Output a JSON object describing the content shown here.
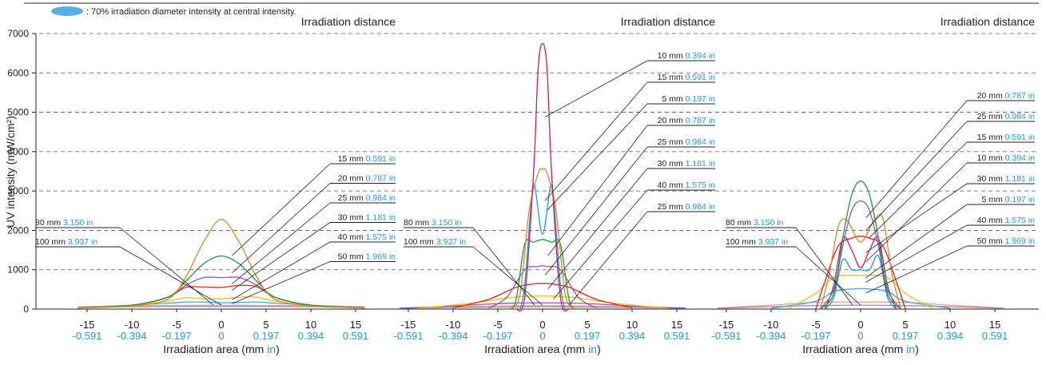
{
  "header": {
    "legend_note": ": 70% irradiation diameter intensity at central intensity."
  },
  "colors": {
    "text": "#222222",
    "inch": "#1a9be0",
    "grid": "#555555",
    "ellipse": "#5aaee6",
    "series": {
      "5 mm": "#1a9be0",
      "10 mm": "#d6176b",
      "15 mm": "#e8841d",
      "20 mm": "#1a9a3d",
      "25 mm": "#8e5aa8",
      "30 mm": "#e0242a",
      "40 mm": "#e9c21a",
      "50 mm": "#3aa6e0",
      "80 mm": "#e8a07a",
      "100 mm": "#9c86c0"
    }
  },
  "chart_data": [
    {
      "type": "line",
      "title": "Irradiation distance",
      "xlabel": "Irradiation area (mm ",
      "xlabel_unit": "in",
      "xlabel_close": ")",
      "ylabel": "UV intensity (mW/cm²)",
      "xlim": [
        -16,
        16
      ],
      "ylim": [
        0,
        7000
      ],
      "yticks": [
        "0",
        "1000",
        "2000",
        "3000",
        "4000",
        "5000",
        "6000",
        "7000"
      ],
      "xticks_mm": [
        "-15",
        "-10",
        "-5",
        "0",
        "5",
        "10",
        "15"
      ],
      "xticks_in": [
        "-0.591",
        "-0.394",
        "-0.197",
        "0",
        "0.197",
        "0.394",
        "0.591"
      ],
      "series": [
        {
          "name": "15 mm",
          "x": [
            -16,
            -10,
            -6,
            -4,
            -2,
            0,
            2,
            4,
            6,
            10,
            16
          ],
          "y": [
            30,
            80,
            250,
            800,
            1700,
            2280,
            1700,
            800,
            250,
            80,
            30
          ]
        },
        {
          "name": "20 mm",
          "x": [
            -16,
            -10,
            -6,
            -4,
            -2,
            0,
            2,
            4,
            6,
            10,
            16
          ],
          "y": [
            30,
            100,
            300,
            700,
            1150,
            1350,
            1150,
            700,
            300,
            100,
            30
          ]
        },
        {
          "name": "25 mm",
          "x": [
            -16,
            -10,
            -6,
            -4,
            -2,
            0,
            2,
            4,
            6,
            10,
            16
          ],
          "y": [
            30,
            100,
            300,
            600,
            800,
            800,
            800,
            600,
            300,
            100,
            30
          ]
        },
        {
          "name": "30 mm",
          "x": [
            -16,
            -10,
            -6,
            -4,
            -2,
            0,
            2,
            4,
            6,
            10,
            16
          ],
          "y": [
            30,
            100,
            300,
            550,
            560,
            550,
            600,
            560,
            300,
            100,
            30
          ]
        },
        {
          "name": "40 mm",
          "x": [
            -16,
            -10,
            -6,
            -4,
            -2,
            0,
            2,
            4,
            6,
            10,
            16
          ],
          "y": [
            30,
            100,
            200,
            290,
            260,
            260,
            300,
            300,
            200,
            100,
            30
          ]
        },
        {
          "name": "50 mm",
          "x": [
            -16,
            -10,
            -6,
            -4,
            -2,
            0,
            2,
            4,
            6,
            10,
            16
          ],
          "y": [
            40,
            100,
            150,
            180,
            180,
            160,
            170,
            180,
            150,
            100,
            40
          ]
        },
        {
          "name": "80 mm",
          "x": [
            -16,
            -10,
            -5,
            0,
            5,
            10,
            16
          ],
          "y": [
            60,
            80,
            90,
            100,
            90,
            80,
            60
          ]
        },
        {
          "name": "100 mm",
          "x": [
            -16,
            -10,
            -5,
            0,
            5,
            10,
            16
          ],
          "y": [
            50,
            60,
            70,
            70,
            70,
            60,
            50
          ]
        }
      ],
      "labels": [
        {
          "mm": "15 mm",
          "in": "0.591 in"
        },
        {
          "mm": "20 mm",
          "in": "0.787 in"
        },
        {
          "mm": "25 mm",
          "in": "0.984 in"
        },
        {
          "mm": "30 mm",
          "in": "1.181 in"
        },
        {
          "mm": "40 mm",
          "in": "1.575 in"
        },
        {
          "mm": "50 mm",
          "in": "1.969 in"
        }
      ],
      "left_labels": [
        {
          "mm": "80 mm",
          "in": "3.150 in"
        },
        {
          "mm": "100 mm",
          "in": "3.937 in"
        }
      ]
    },
    {
      "type": "line",
      "title": "Irradiation distance",
      "xlabel": "Irradiation area (mm ",
      "xlabel_unit": "in",
      "xlabel_close": ")",
      "xlim": [
        -16,
        16
      ],
      "ylim": [
        0,
        7000
      ],
      "xticks_mm": [
        "-15",
        "-10",
        "-5",
        "0",
        "5",
        "10",
        "15"
      ],
      "xticks_in": [
        "-0.591",
        "-0.394",
        "-0.197",
        "0",
        "0.197",
        "0.394",
        "0.591"
      ],
      "series": [
        {
          "name": "10 mm",
          "x": [
            -3,
            -2,
            -1,
            -0.5,
            0,
            0.5,
            1,
            2,
            3
          ],
          "y": [
            0,
            300,
            3500,
            6100,
            6750,
            6100,
            3500,
            300,
            0
          ]
        },
        {
          "name": "15 mm",
          "x": [
            -3.5,
            -2.5,
            -1.5,
            -0.5,
            0,
            0.5,
            1.5,
            2.5,
            3.5
          ],
          "y": [
            0,
            400,
            2500,
            3450,
            3550,
            3450,
            2500,
            400,
            0
          ]
        },
        {
          "name": "5 mm",
          "x": [
            -2.5,
            -2,
            -1.3,
            -0.9,
            0,
            0.9,
            1.3,
            2,
            2.5
          ],
          "y": [
            0,
            600,
            2600,
            3150,
            1900,
            3150,
            2600,
            600,
            0
          ]
        },
        {
          "name": "20 mm",
          "x": [
            -4,
            -3,
            -2,
            -1,
            0,
            1,
            2,
            3,
            4
          ],
          "y": [
            0,
            200,
            1650,
            1700,
            1770,
            1700,
            1650,
            200,
            0
          ]
        },
        {
          "name": "25 mm",
          "x": [
            -6,
            -4,
            -2,
            -0.5,
            0,
            0.5,
            2,
            4,
            6
          ],
          "y": [
            30,
            300,
            1000,
            1080,
            1100,
            1080,
            1000,
            300,
            30
          ]
        },
        {
          "name": "30 mm",
          "x": [
            -10,
            -6,
            -3,
            -1,
            0,
            1,
            3,
            6,
            10
          ],
          "y": [
            30,
            250,
            550,
            640,
            650,
            640,
            550,
            250,
            30
          ]
        },
        {
          "name": "40 mm",
          "x": [
            -14,
            -8,
            -4,
            -2,
            0,
            2,
            4,
            8,
            14
          ],
          "y": [
            20,
            150,
            280,
            320,
            330,
            320,
            280,
            150,
            20
          ]
        },
        {
          "name": "25 mm",
          "x": [
            -16,
            -10,
            -5,
            0,
            5,
            10,
            16
          ],
          "y": [
            20,
            80,
            140,
            160,
            140,
            80,
            20
          ]
        },
        {
          "name": "80 mm",
          "x": [
            -16,
            -10,
            -5,
            0,
            5,
            10,
            16
          ],
          "y": [
            30,
            60,
            80,
            90,
            80,
            60,
            30
          ]
        },
        {
          "name": "100 mm",
          "x": [
            -16,
            -10,
            -5,
            0,
            5,
            10,
            16
          ],
          "y": [
            20,
            40,
            50,
            60,
            50,
            40,
            20
          ]
        }
      ],
      "labels": [
        {
          "mm": "10 mm",
          "in": "0.394 in"
        },
        {
          "mm": "15 mm",
          "in": "0.591 in"
        },
        {
          "mm": "5 mm",
          "in": "0.197 in"
        },
        {
          "mm": "20 mm",
          "in": "0.787 in"
        },
        {
          "mm": "25 mm",
          "in": "0.984 in"
        },
        {
          "mm": "30 mm",
          "in": "1.181 in"
        },
        {
          "mm": "40 mm",
          "in": "1.575 in"
        },
        {
          "mm": "25 mm",
          "in": "0.984 in"
        }
      ],
      "left_labels": [
        {
          "mm": "80 mm",
          "in": "3.150 in"
        },
        {
          "mm": "100 mm",
          "in": "3.937 in"
        }
      ]
    },
    {
      "type": "line",
      "title": "Irradiation distance",
      "xlabel": "Irradiation area (mm ",
      "xlabel_unit": "in",
      "xlabel_close": ")",
      "xlim": [
        -16,
        16
      ],
      "ylim": [
        0,
        7000
      ],
      "xticks_mm": [
        "-15",
        "-10",
        "-5",
        "0",
        "5",
        "10",
        "15"
      ],
      "xticks_in": [
        "-0.591",
        "-0.394",
        "-0.197",
        "0",
        "0.197",
        "0.394",
        "0.591"
      ],
      "series": [
        {
          "name": "20 mm",
          "x": [
            -4.5,
            -3,
            -2,
            -1,
            0,
            1,
            2,
            3,
            4.5
          ],
          "y": [
            0,
            400,
            1800,
            2900,
            3250,
            2900,
            1800,
            400,
            0
          ]
        },
        {
          "name": "25 mm",
          "x": [
            -4.5,
            -3,
            -2,
            -1,
            0,
            1,
            2,
            3,
            4.5
          ],
          "y": [
            0,
            500,
            1600,
            2500,
            2750,
            2500,
            1600,
            500,
            0
          ]
        },
        {
          "name": "15 mm",
          "x": [
            -4.5,
            -3.5,
            -2.5,
            -1.5,
            0,
            1.5,
            2.5,
            3.5,
            4.5
          ],
          "y": [
            0,
            900,
            2100,
            2250,
            1700,
            2250,
            2300,
            900,
            0
          ]
        },
        {
          "name": "10 mm",
          "x": [
            -4,
            -3,
            -2,
            -1,
            0,
            1,
            2,
            3,
            4
          ],
          "y": [
            0,
            600,
            1800,
            1500,
            1050,
            1500,
            1800,
            600,
            0
          ]
        },
        {
          "name": "30 mm",
          "x": [
            -5,
            -4,
            -2.5,
            -1,
            0,
            1,
            2.5,
            4,
            5
          ],
          "y": [
            0,
            700,
            1600,
            1800,
            1850,
            1800,
            1600,
            700,
            0
          ]
        },
        {
          "name": "5 mm",
          "x": [
            -4,
            -3,
            -2,
            -1,
            0,
            1,
            2,
            3,
            4
          ],
          "y": [
            0,
            300,
            1250,
            1000,
            1000,
            1000,
            1350,
            300,
            0
          ]
        },
        {
          "name": "40 mm",
          "x": [
            -8,
            -5,
            -3,
            -1,
            0,
            1,
            3,
            5,
            8
          ],
          "y": [
            20,
            400,
            800,
            860,
            850,
            860,
            800,
            400,
            20
          ]
        },
        {
          "name": "50 mm",
          "x": [
            -10,
            -5,
            -3,
            -1,
            0,
            1,
            3,
            5,
            10
          ],
          "y": [
            20,
            200,
            450,
            510,
            520,
            510,
            450,
            200,
            20
          ]
        },
        {
          "name": "80 mm",
          "x": [
            -16,
            -10,
            -5,
            0,
            5,
            10,
            16
          ],
          "y": [
            30,
            100,
            170,
            180,
            170,
            100,
            30
          ]
        },
        {
          "name": "100 mm",
          "x": [
            -16,
            -10,
            -5,
            0,
            5,
            10,
            16
          ],
          "y": [
            20,
            60,
            90,
            100,
            90,
            60,
            20
          ]
        }
      ],
      "labels": [
        {
          "mm": "20 mm",
          "in": "0.787 in"
        },
        {
          "mm": "25 mm",
          "in": "0.984 in"
        },
        {
          "mm": "15 mm",
          "in": "0.591 in"
        },
        {
          "mm": "10 mm",
          "in": "0.394 in"
        },
        {
          "mm": "30 mm",
          "in": "1.181 in"
        },
        {
          "mm": "5 mm",
          "in": "0.197 in"
        },
        {
          "mm": "40 mm",
          "in": "1.575 in"
        },
        {
          "mm": "50 mm",
          "in": "1.969 in"
        }
      ],
      "left_labels": [
        {
          "mm": "80 mm",
          "in": "3.150 in"
        },
        {
          "mm": "100 mm",
          "in": "3.937 in"
        }
      ]
    }
  ]
}
